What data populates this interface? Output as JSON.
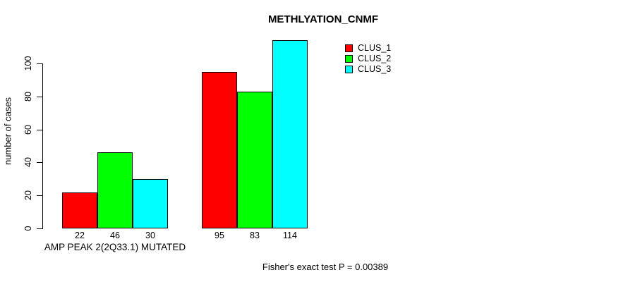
{
  "chart_data": {
    "type": "bar",
    "title": "METHLYATION_CNMF",
    "ylabel": "number of cases",
    "xlabel": "",
    "categories": [
      "AMP PEAK 2(2Q33.1) MUTATED",
      ""
    ],
    "series": [
      {
        "name": "CLUS_1",
        "color": "#ff0000",
        "values": [
          22,
          95
        ]
      },
      {
        "name": "CLUS_2",
        "color": "#00ff00",
        "values": [
          46,
          83
        ]
      },
      {
        "name": "CLUS_3",
        "color": "#00ffff",
        "values": [
          30,
          114
        ]
      }
    ],
    "y_ticks": [
      0,
      20,
      40,
      60,
      80,
      100
    ],
    "ylim": [
      0,
      117
    ],
    "grid": false,
    "bar_borders": "#000000",
    "legend_position": "top-right",
    "annotation": "Fisher's exact test P = 0.00389"
  }
}
